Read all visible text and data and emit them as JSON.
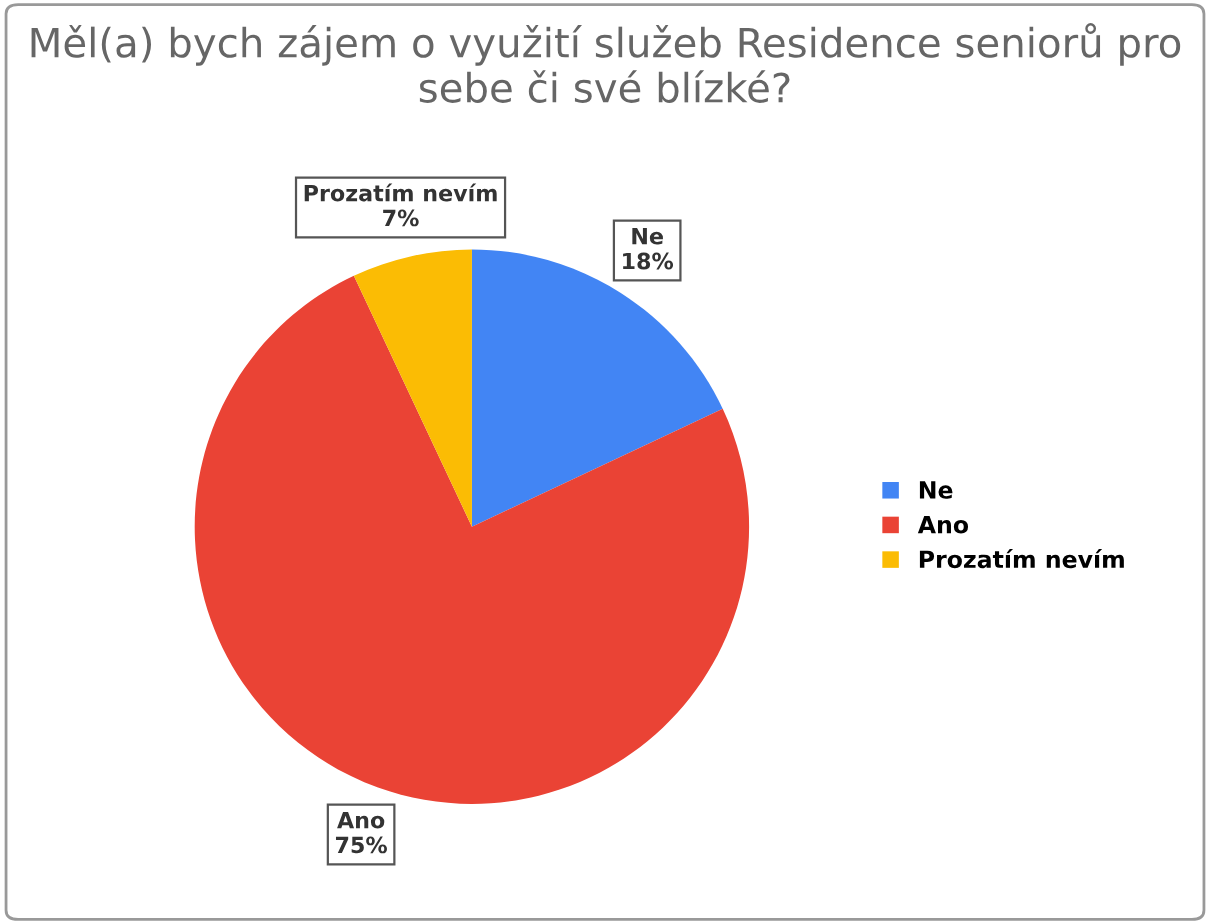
{
  "chart_data": {
    "type": "pie",
    "title": "Měl(a) bych zájem o využití služeb Residence seniorů pro sebe či své blízké?",
    "categories": [
      "Ne",
      "Ano",
      "Prozatím nevím"
    ],
    "values": [
      18,
      75,
      7
    ],
    "colors": [
      "#4285f4",
      "#ea4335",
      "#fbbc04"
    ],
    "value_labels": [
      "18%",
      "75%",
      "7%"
    ],
    "legend": "right"
  }
}
